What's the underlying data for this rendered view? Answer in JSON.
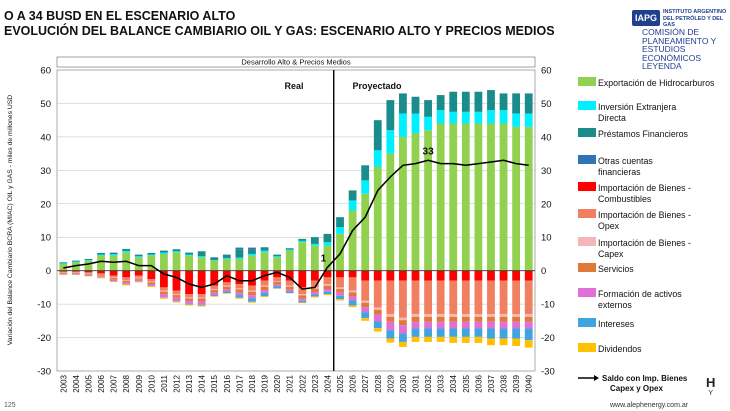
{
  "header": {
    "title_line1": "O A 34 BUSD EN EL ESCENARIO ALTO",
    "title_line2": "EVOLUCIÓN DEL BALANCE CAMBIARIO OIL Y GAS: ESCENARIO ALTO Y PRECIOS MEDIOS"
  },
  "logo": {
    "badge": "IAPG",
    "small_text": "INSTITUTO ARGENTINO\nDEL PETRÓLEO Y DEL GAS",
    "text": "COMISIÓN DE\nPLANEAMIENTO Y\nESTUDIOS ECONÓMICOS\nLEYENDA"
  },
  "footer": {
    "page": "125",
    "url": "www.alephenergy.com.ar",
    "mark": "H",
    "mark_sub": "Y"
  },
  "colors": {
    "expo_hidro": "#92d050",
    "ied": "#00f0ff",
    "prestamos": "#1a8c8c",
    "otras": "#2e75b6",
    "imp_comb": "#ff0000",
    "imp_opex": "#f08060",
    "imp_capex": "#f4b6b6",
    "servicios": "#e07838",
    "fae": "#e070d8",
    "intereses": "#3fa4e0",
    "dividendos": "#ffc000",
    "saldo": "#000000"
  },
  "chart_data": {
    "type": "bar",
    "stacked": true,
    "title": "Desarrollo Alto & Precios Medios",
    "ylabel": "Variación del Balance Cambiario BCRA (MIAC) OIL y GAS - miles de millones USD",
    "ylim": [
      -30,
      60
    ],
    "y_ticks": [
      -30,
      -20,
      -10,
      0,
      10,
      20,
      30,
      40,
      50,
      60
    ],
    "regions": {
      "real": "Real",
      "projected": "Proyectado"
    },
    "divider_after": "2024",
    "annotations": [
      {
        "x": "2024",
        "text": "1"
      },
      {
        "x": "2032",
        "text": "33"
      }
    ],
    "categories": [
      "2003",
      "2004",
      "2005",
      "2006",
      "2007",
      "2008",
      "2009",
      "2010",
      "2011",
      "2012",
      "2013",
      "2014",
      "2015",
      "2016",
      "2017",
      "2018",
      "2019",
      "2020",
      "2021",
      "2022",
      "2023",
      "2024",
      "2025",
      "2026",
      "2027",
      "2028",
      "2029",
      "2030",
      "2031",
      "2032",
      "2033",
      "2034",
      "2035",
      "2036",
      "2037",
      "2038",
      "2039",
      "2040"
    ],
    "series": [
      {
        "name": "Exportación de Hidrocarburos",
        "key": "expo_hidro",
        "values": [
          2,
          2.5,
          3,
          4.5,
          4.5,
          5.5,
          4,
          4.5,
          5,
          5.5,
          4.5,
          4,
          3,
          3.5,
          3.5,
          4.5,
          5.5,
          4,
          6,
          8.5,
          7.5,
          7.5,
          11,
          18,
          23,
          31,
          35,
          40,
          41,
          42,
          44,
          44,
          44,
          44,
          44,
          44,
          43,
          43
        ]
      },
      {
        "name": "Inversión Extranjera Directa",
        "key": "ied",
        "values": [
          0.2,
          0.2,
          0.2,
          0.3,
          0.4,
          0.4,
          0.3,
          0.3,
          0.4,
          0.3,
          0.3,
          0.3,
          0.2,
          0.3,
          0.4,
          0.5,
          0.5,
          0.3,
          0.3,
          0.4,
          0.5,
          1,
          2,
          3,
          4,
          5,
          7,
          7,
          6,
          4,
          4,
          3.5,
          3.5,
          3.5,
          4,
          4,
          4,
          4
        ]
      },
      {
        "name": "Préstamos Financieros",
        "key": "prestamos",
        "values": [
          0.3,
          0.3,
          0.3,
          0.5,
          0.5,
          0.6,
          0.5,
          0.5,
          0.6,
          0.6,
          0.6,
          1.5,
          0.8,
          1,
          2.5,
          1.2,
          1,
          0.5,
          0.4,
          0.6,
          2,
          2.5,
          3,
          3,
          4.5,
          9,
          9,
          6,
          5,
          5,
          4.5,
          6,
          6,
          6,
          6,
          5,
          6,
          6
        ]
      },
      {
        "name": "Otras cuentas financieras",
        "key": "otras",
        "values": [
          0,
          0,
          0,
          0,
          0,
          0,
          0,
          0,
          0,
          0,
          0,
          0,
          0,
          0,
          0.5,
          0.7,
          0,
          0,
          0,
          0,
          0,
          0,
          0,
          0,
          0,
          0,
          0,
          0,
          0,
          0,
          0,
          0,
          0,
          0,
          0,
          0,
          0,
          0
        ]
      },
      {
        "name": "Importación de Bienes - Combustibles",
        "key": "imp_comb",
        "values": [
          -0.3,
          -0.3,
          -0.5,
          -0.8,
          -1.5,
          -2,
          -1.5,
          -2.5,
          -5,
          -6,
          -7,
          -7,
          -4.5,
          -3.5,
          -4,
          -4.5,
          -3,
          -2,
          -3,
          -5,
          -3,
          -2,
          -2,
          -2,
          -3,
          -3,
          -3,
          -3,
          -3,
          -3,
          -3,
          -3,
          -3,
          -3,
          -3,
          -3,
          -3,
          -3
        ]
      },
      {
        "name": "Importación de Bienes - Opex",
        "key": "imp_opex",
        "values": [
          -0.3,
          -0.3,
          -0.3,
          -0.5,
          -0.5,
          -0.8,
          -0.6,
          -0.8,
          -1,
          -1,
          -1,
          -1,
          -1,
          -1,
          -1.3,
          -1.5,
          -1.5,
          -1.2,
          -1.5,
          -2,
          -2,
          -2,
          -3,
          -4,
          -6,
          -8,
          -10,
          -11,
          -10,
          -10,
          -10,
          -10,
          -10,
          -10,
          -10,
          -10,
          -10,
          -10
        ]
      },
      {
        "name": "Importación de Bienes - Capex",
        "key": "imp_capex",
        "values": [
          -0.1,
          -0.1,
          -0.1,
          -0.1,
          -0.2,
          -0.2,
          -0.2,
          -0.2,
          -0.3,
          -0.3,
          -0.3,
          -0.3,
          -0.3,
          -0.3,
          -0.3,
          -0.3,
          -0.3,
          -0.2,
          -0.3,
          -0.4,
          -0.4,
          -0.5,
          -0.5,
          -0.5,
          -0.6,
          -0.7,
          -0.8,
          -0.8,
          -0.8,
          -0.8,
          -0.8,
          -0.8,
          -0.8,
          -0.8,
          -0.8,
          -0.8,
          -0.8,
          -0.8
        ]
      },
      {
        "name": "Servicios",
        "key": "servicios",
        "values": [
          -0.2,
          -0.2,
          -0.3,
          -0.3,
          -0.4,
          -0.5,
          -0.4,
          -0.5,
          -0.7,
          -0.8,
          -0.8,
          -0.9,
          -0.8,
          -0.8,
          -0.9,
          -1,
          -1,
          -0.8,
          -0.9,
          -1,
          -1,
          -1,
          -1,
          -1.2,
          -1.3,
          -1.5,
          -1.5,
          -1.5,
          -1.5,
          -1.5,
          -1.5,
          -1.5,
          -1.5,
          -1.5,
          -1.5,
          -1.5,
          -1.5,
          -1.5
        ]
      },
      {
        "name": "Formación de activos externos",
        "key": "fae",
        "values": [
          -0.2,
          -0.2,
          -0.3,
          -0.3,
          -0.5,
          -0.5,
          -0.5,
          -0.5,
          -1,
          -1,
          -0.8,
          -1,
          -0.7,
          -0.6,
          -0.8,
          -1,
          -0.8,
          -0.5,
          -0.5,
          -0.6,
          -0.7,
          -0.8,
          -1,
          -1.2,
          -1.5,
          -2,
          -2.5,
          -2.5,
          -2,
          -2,
          -2,
          -2,
          -2,
          -2,
          -2,
          -2,
          -2,
          -2
        ]
      },
      {
        "name": "Intereses",
        "key": "intereses",
        "values": [
          -0.1,
          -0.1,
          -0.1,
          -0.1,
          -0.1,
          -0.1,
          -0.1,
          -0.1,
          -0.1,
          -0.1,
          -0.2,
          -0.2,
          -0.3,
          -0.5,
          -0.8,
          -1,
          -1,
          -0.6,
          -0.5,
          -0.5,
          -0.6,
          -0.7,
          -1,
          -1.5,
          -1.8,
          -2,
          -2.5,
          -2.5,
          -2.5,
          -2.5,
          -2.5,
          -2.5,
          -2.5,
          -2.5,
          -3,
          -3,
          -3,
          -3.5
        ]
      },
      {
        "name": "Dividendos",
        "key": "dividendos",
        "values": [
          -0.1,
          -0.1,
          -0.1,
          -0.2,
          -0.2,
          -0.3,
          -0.2,
          -0.3,
          -0.3,
          -0.3,
          -0.3,
          -0.3,
          -0.2,
          -0.2,
          -0.3,
          -0.3,
          -0.3,
          -0.1,
          -0.1,
          -0.2,
          -0.3,
          -0.3,
          -0.4,
          -0.5,
          -0.8,
          -1,
          -1.2,
          -1.5,
          -1.5,
          -1.5,
          -1.5,
          -1.8,
          -1.8,
          -1.8,
          -2,
          -2,
          -2.2,
          -2.2
        ]
      },
      {
        "name": "Saldo con Imp. Bienes Capex y Opex",
        "key": "saldo",
        "type": "line",
        "values": [
          0.8,
          1.5,
          2,
          2.8,
          2.5,
          2.8,
          1.5,
          1.5,
          -1,
          -2,
          -4,
          -5,
          -4,
          -1.5,
          -3,
          -3,
          -1.5,
          -0.5,
          -2,
          -5.5,
          -5,
          1,
          5,
          12,
          16,
          24,
          28,
          31.5,
          32,
          33,
          32,
          32,
          31.5,
          32,
          32.5,
          33,
          32,
          31.5
        ]
      }
    ]
  }
}
